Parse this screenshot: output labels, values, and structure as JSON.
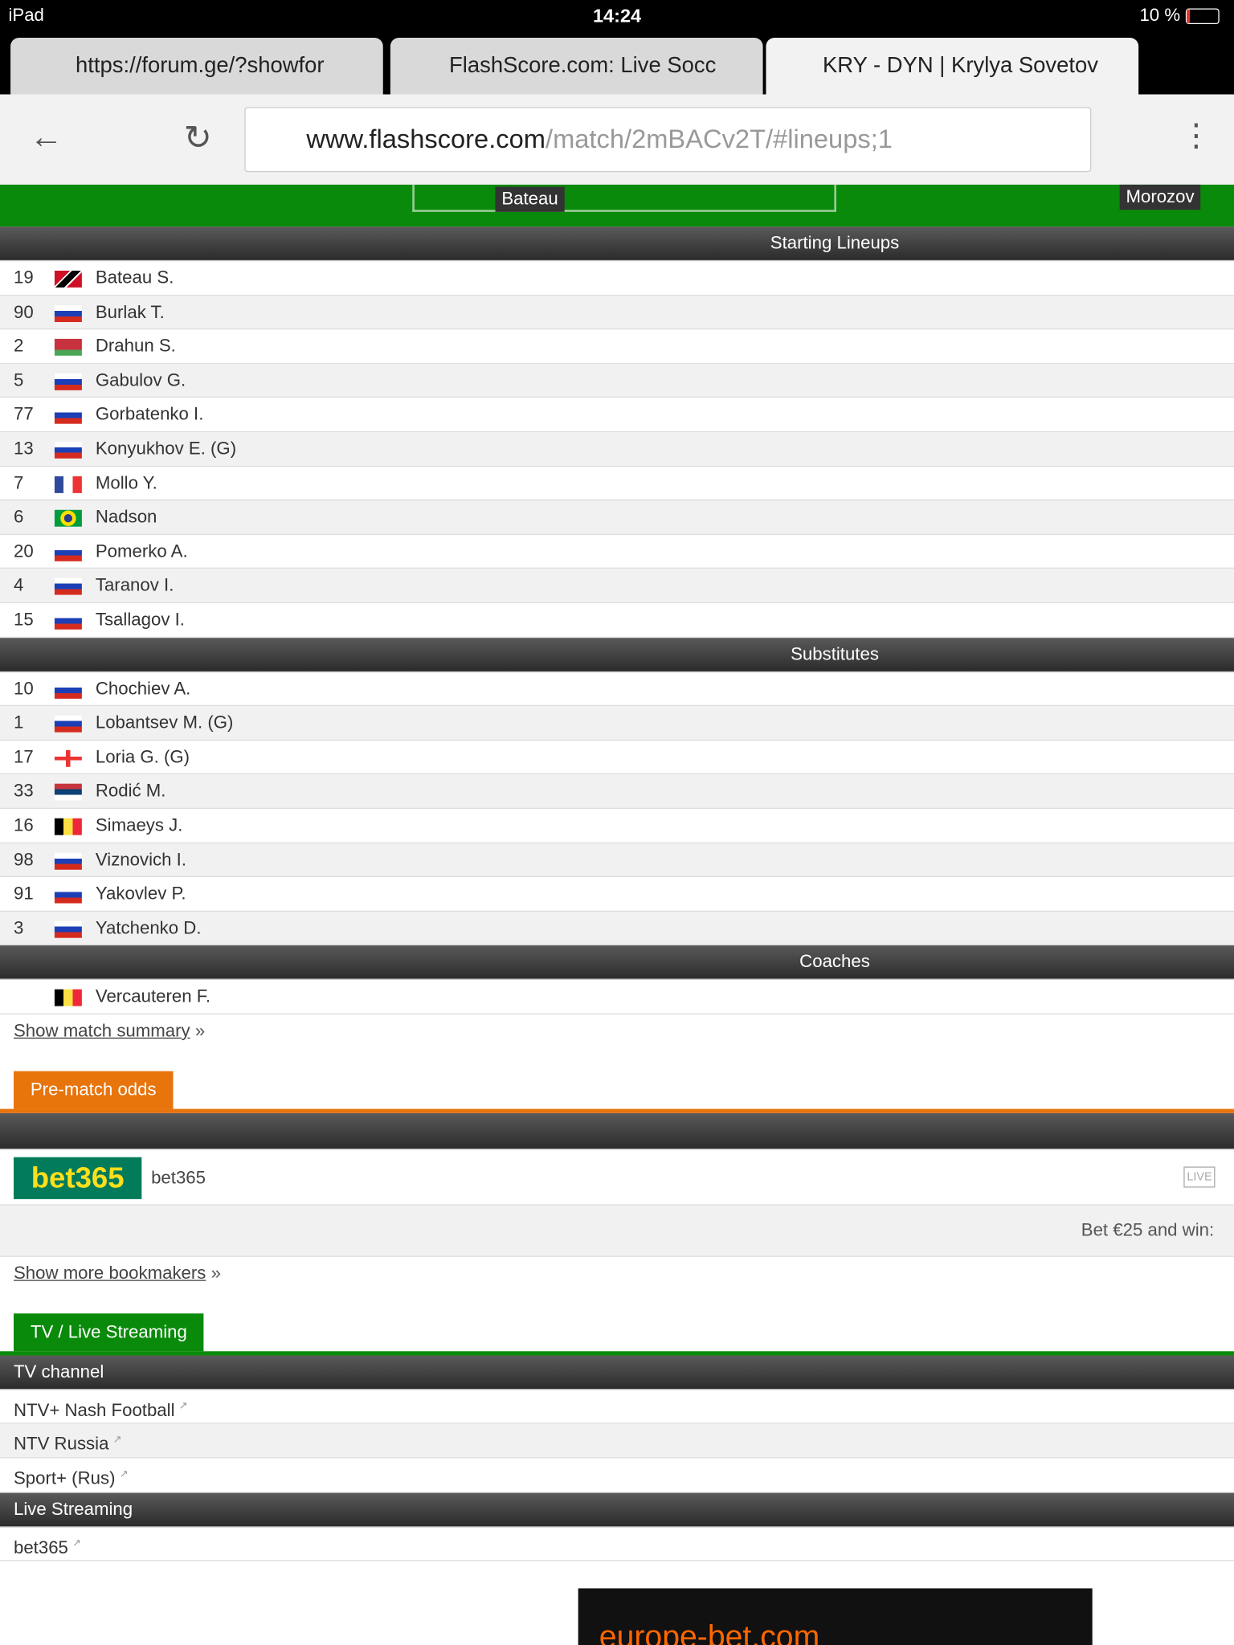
{
  "status": {
    "device": "iPad",
    "time": "14:24",
    "battery": "10 %"
  },
  "tabs": [
    "https://forum.ge/?showfor",
    "FlashScore.com: Live Socc",
    "KRY - DYN | Krylya Sovetov"
  ],
  "url": {
    "host": "www.flashscore.com",
    "path": "/match/2mBACv2T/#lineups;1"
  },
  "pitch": {
    "left": "Bateau",
    "right": "Morozov"
  },
  "sections": [
    {
      "title": "Starting Lineups",
      "rows": [
        [
          "19",
          "Bateau S."
        ],
        [
          "90",
          "Burlak T."
        ],
        [
          "2",
          "Drahun S."
        ],
        [
          "5",
          "Gabulov G."
        ],
        [
          "77",
          "Gorbatenko I."
        ],
        [
          "13",
          "Konyukhov E. (G)"
        ],
        [
          "7",
          "Mollo Y."
        ],
        [
          "6",
          "Nadson"
        ],
        [
          "20",
          "Pomerko A."
        ],
        [
          "4",
          "Taranov I."
        ],
        [
          "15",
          "Tsallagov I."
        ]
      ]
    },
    {
      "title": "Substitutes",
      "rows": [
        [
          "10",
          "Chochiev A."
        ],
        [
          "1",
          "Lobantsev M. (G)"
        ],
        [
          "17",
          "Loria G. (G)"
        ],
        [
          "33",
          "Rodić M."
        ],
        [
          "16",
          "Simaeys J."
        ],
        [
          "98",
          "Viznovich I."
        ],
        [
          "91",
          "Yakovlev P."
        ],
        [
          "3",
          "Yatchenko D."
        ]
      ]
    },
    {
      "title": "Coaches",
      "rows": [
        [
          "",
          "Vercauteren F."
        ]
      ]
    }
  ],
  "summary_link": "Show match summary",
  "more_arrow": "»",
  "odds": {
    "tab": "Pre-match odds",
    "logo": "bet365",
    "bookmaker": "bet365",
    "live": "LIVE",
    "bet_text": "Bet €25 and win:",
    "more_link": "Show more bookmakers"
  },
  "tv": {
    "tab": "TV / Live Streaming",
    "channel_header": "TV channel",
    "channels": [
      "NTV+ Nash Football",
      "NTV Russia",
      "Sport+ (Rus)"
    ],
    "stream_header": "Live Streaming",
    "streams": [
      "bet365"
    ]
  },
  "ad": "europe-bet.com"
}
